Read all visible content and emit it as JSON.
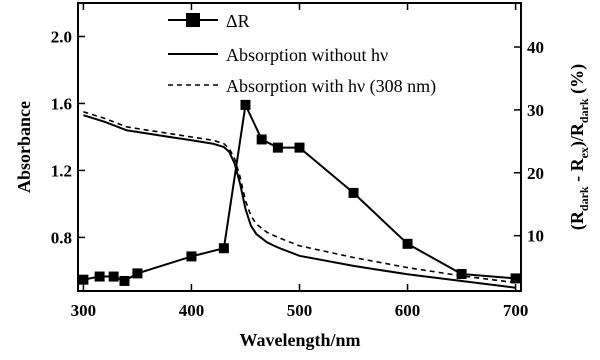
{
  "chart_data": {
    "type": "line",
    "xlabel": "Wavelength/nm",
    "ylabel_left": "Absorbance",
    "ylabel_right": {
      "base": "(R",
      "sub1": "dark",
      "mid1": " - R",
      "sub2": "ex",
      "mid2": ")/R",
      "sub3": "dark",
      "tail": " (%)"
    },
    "xlim": [
      295,
      705
    ],
    "ylim_left": [
      0.48,
      2.2
    ],
    "ylim_right": [
      1.2,
      47
    ],
    "x_ticks": [
      300,
      400,
      500,
      600,
      700
    ],
    "y_left_ticks": [
      0.8,
      1.2,
      1.6,
      2.0
    ],
    "y_left_tick_labels": [
      "0.8",
      "1.2",
      "1.6",
      "2.0"
    ],
    "y_right_ticks": [
      10,
      20,
      30,
      40
    ],
    "grid": false,
    "legend_position": "top-center",
    "series": [
      {
        "name": "ΔR",
        "axis": "right",
        "style": "solid-square-markers",
        "color": "#000000",
        "x": [
          300,
          315,
          328,
          338,
          350,
          400,
          430,
          450,
          465,
          480,
          500,
          550,
          600,
          650,
          700
        ],
        "y": [
          3.0,
          3.5,
          3.5,
          2.8,
          4.0,
          6.7,
          8.0,
          30.8,
          25.3,
          24.0,
          24.0,
          16.8,
          8.7,
          3.9,
          3.2
        ]
      },
      {
        "name": "Absorption without hν",
        "axis": "left",
        "style": "solid",
        "color": "#000000",
        "x": [
          300,
          320,
          340,
          360,
          380,
          400,
          420,
          430,
          435,
          440,
          445,
          450,
          455,
          460,
          470,
          480,
          500,
          550,
          600,
          650,
          700
        ],
        "y": [
          1.53,
          1.49,
          1.44,
          1.42,
          1.4,
          1.38,
          1.36,
          1.34,
          1.31,
          1.24,
          1.12,
          0.97,
          0.87,
          0.82,
          0.77,
          0.74,
          0.69,
          0.63,
          0.58,
          0.54,
          0.5
        ]
      },
      {
        "name": "Absorption with hν (308 nm)",
        "axis": "left",
        "style": "dashed",
        "color": "#000000",
        "x": [
          300,
          320,
          340,
          360,
          380,
          400,
          420,
          430,
          435,
          440,
          445,
          450,
          455,
          460,
          470,
          480,
          500,
          550,
          600,
          650,
          700
        ],
        "y": [
          1.55,
          1.51,
          1.46,
          1.44,
          1.42,
          1.4,
          1.38,
          1.36,
          1.33,
          1.27,
          1.16,
          1.02,
          0.93,
          0.88,
          0.83,
          0.8,
          0.75,
          0.68,
          0.62,
          0.57,
          0.53
        ]
      }
    ]
  }
}
